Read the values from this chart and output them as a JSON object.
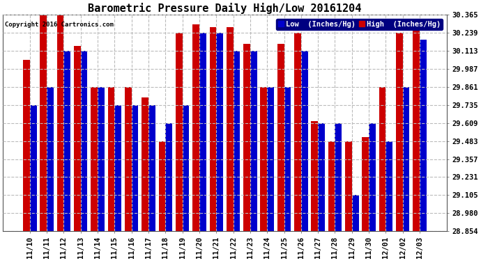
{
  "title": "Barometric Pressure Daily High/Low 20161204",
  "copyright": "Copyright 2016 Cartronics.com",
  "legend_low": "Low  (Inches/Hg)",
  "legend_high": "High  (Inches/Hg)",
  "labels": [
    "11/10",
    "11/11",
    "11/12",
    "11/13",
    "11/14",
    "11/15",
    "11/16",
    "11/17",
    "11/18",
    "11/19",
    "11/20",
    "11/21",
    "11/22",
    "11/23",
    "11/24",
    "11/25",
    "11/26",
    "11/27",
    "11/28",
    "11/29",
    "11/30",
    "12/01",
    "12/02",
    "12/03"
  ],
  "low_values": [
    29.735,
    29.861,
    30.113,
    30.113,
    29.861,
    29.735,
    29.735,
    29.735,
    29.609,
    29.735,
    30.239,
    30.239,
    30.113,
    30.113,
    29.861,
    29.861,
    30.113,
    29.609,
    29.609,
    29.105,
    29.609,
    29.483,
    29.861,
    30.19
  ],
  "high_values": [
    30.05,
    30.365,
    30.365,
    30.15,
    29.861,
    29.861,
    29.861,
    29.79,
    29.483,
    30.239,
    30.3,
    30.28,
    30.28,
    30.16,
    29.861,
    30.16,
    30.239,
    29.62,
    29.483,
    29.483,
    29.51,
    29.861,
    30.239,
    30.28
  ],
  "bar_color_low": "#0000cc",
  "bar_color_high": "#cc0000",
  "bg_color": "#ffffff",
  "plot_bg_color": "#ffffff",
  "grid_color": "#bbbbbb",
  "ylim_min": 28.854,
  "ylim_max": 30.365,
  "yticks": [
    28.854,
    28.98,
    29.105,
    29.231,
    29.357,
    29.483,
    29.609,
    29.735,
    29.861,
    29.987,
    30.113,
    30.239,
    30.365
  ],
  "title_fontsize": 11,
  "tick_fontsize": 7.5,
  "legend_fontsize": 7.5,
  "copyright_fontsize": 6.5
}
